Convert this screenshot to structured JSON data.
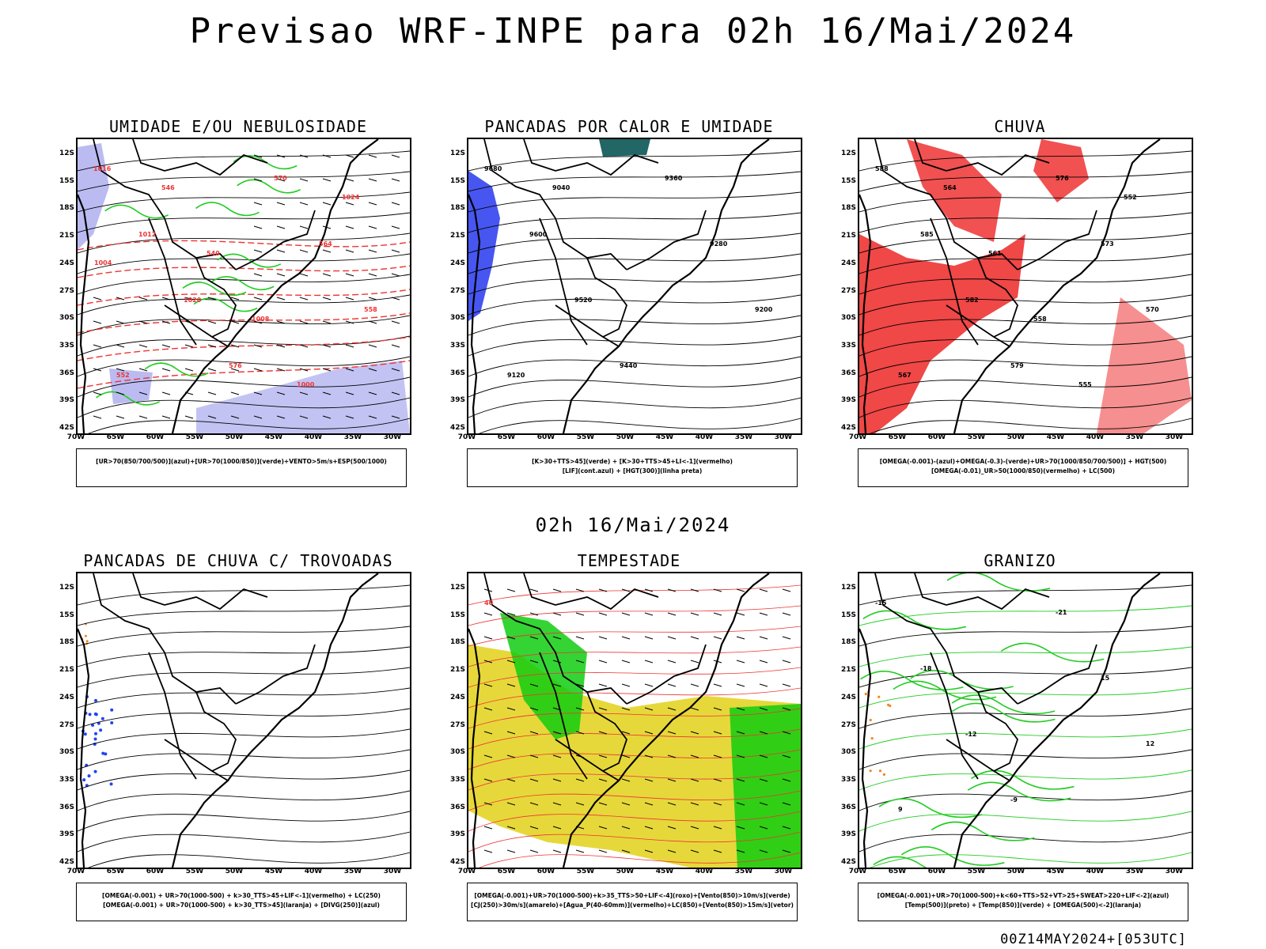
{
  "header": {
    "title": "Previsao WRF-INPE  para 02h 16/Mai/2024",
    "subtitle": "02h 16/Mai/2024"
  },
  "footer": {
    "run_label": "00Z14MAY2024+[053UTC]"
  },
  "axes": {
    "lat_labels": [
      "12S",
      "15S",
      "18S",
      "21S",
      "24S",
      "27S",
      "30S",
      "33S",
      "36S",
      "39S",
      "42S"
    ],
    "lon_labels": [
      "70W",
      "65W",
      "60W",
      "55W",
      "50W",
      "45W",
      "40W",
      "35W",
      "30W"
    ]
  },
  "panels": [
    {
      "title": "UMIDADE E/OU NEBULOSIDADE",
      "legend": [
        "[UR>70(850/700/500)](azul)+[UR>70(1000/850)](verde)+VENTO>5m/s+ESP(500/1000)"
      ],
      "colors": {
        "fill": "#aaaaee",
        "contour": "#22cc22",
        "dashed": "#ee3333"
      },
      "contour_labels": [
        "1016",
        "1012",
        "1020",
        "576",
        "570",
        "564",
        "558",
        "552",
        "546",
        "540",
        "1008",
        "1000",
        "1024",
        "1004"
      ]
    },
    {
      "title": "PANCADAS POR CALOR E UMIDADE",
      "legend": [
        "[K>30+TTS>45](verde) + [K>30+TTS>45+LI<-1](vermelho)",
        "[LIF](cont.azul) + [HGT(300)](linha preta)"
      ],
      "colors": {
        "fill": "#3344ee",
        "accent": "#226666"
      },
      "contour_labels": [
        "9680",
        "9600",
        "9520",
        "9440",
        "9360",
        "9280",
        "9200",
        "9120",
        "9040"
      ]
    },
    {
      "title": "CHUVA",
      "legend": [
        "[OMEGA(-0.001)-(azul)+OMEGA(-0.3)-(verde)+UR>70(1000/850/700/500)] + HGT(500)",
        "[OMEGA(-0.01)_UR>50(1000/850)(vermelho) + LC(500)"
      ],
      "colors": {
        "fill": "#ee3333",
        "accent": "#2244ee"
      },
      "contour_labels": [
        "588",
        "585",
        "582",
        "579",
        "576",
        "573",
        "570",
        "567",
        "564",
        "561",
        "558",
        "555",
        "552"
      ]
    },
    {
      "title": "PANCADAS DE CHUVA C/ TROVOADAS",
      "legend": [
        "[OMEGA(-0.001) + UR>70(1000-500) + k>30_TTS>45+LIF<-1](vermelho) + LC(250)",
        "[OMEGA(-0.001) + UR>70(1000-500) + k>30_TTS>45](laranja) + [DIVG(250)](azul)"
      ],
      "colors": {
        "fill": "#2244ee",
        "accent": "#ee8822"
      },
      "contour_labels": []
    },
    {
      "title": "TEMPESTADE",
      "legend": [
        "[OMEGA(-0.001)+UR>70(1000-500)+k>35_TTS>50+LIF<-4](roxo)+[Vento(850)>10m/s](verde)",
        "[CJ(250)>30m/s](amarelo)+[Agua_P(40-60mm)](vermelho)+LC(850)+[Vento(850)>15m/s](vetor)"
      ],
      "colors": {
        "fill": "#e6d83a",
        "accent": "#11cc11",
        "contour": "#ee3333"
      },
      "contour_labels": [
        "40"
      ]
    },
    {
      "title": "GRANIZO",
      "legend": [
        "[OMEGA(-0.001)+UR>70(1000-500)+k<60+TTS>52+VT>25+SWEAT>220+LIF<-2](azul)",
        "[Temp(500)](preto) + [Temp(850)](verde) + [OMEGA(500)<-2](laranja)"
      ],
      "colors": {
        "contour": "#22cc22",
        "accent": "#ee8822"
      },
      "contour_labels": [
        "-15",
        "-18",
        "-12",
        "-9",
        "-21",
        "15",
        "12",
        "9"
      ]
    }
  ]
}
